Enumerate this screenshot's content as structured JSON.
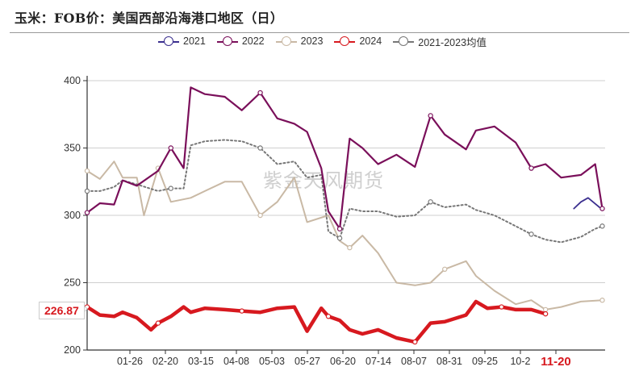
{
  "title": "玉米：FOB价：美国西部沿海港口地区（日）",
  "watermark": "紫金天风期货",
  "legend": [
    {
      "label": "2021",
      "color": "#3b2f8f"
    },
    {
      "label": "2022",
      "color": "#7a0f5a"
    },
    {
      "label": "2023",
      "color": "#c9b9a5"
    },
    {
      "label": "2024",
      "color": "#d7191f"
    },
    {
      "label": "2021-2023均值",
      "color": "#777777"
    }
  ],
  "current_value_badge": "226.87",
  "chart_data": {
    "type": "line",
    "title": "玉米：FOB价：美国西部沿海港口地区（日）",
    "xlabel": "",
    "ylabel": "",
    "ylim": [
      200,
      400
    ],
    "yticks": [
      "400",
      "350",
      "300",
      "250",
      "200"
    ],
    "xticks": [
      "01-26",
      "02-20",
      "03-15",
      "04-08",
      "05-03",
      "05-27",
      "06-20",
      "07-14",
      "08-07",
      "08-31",
      "09-25",
      "10-2",
      "11-20"
    ],
    "highlighted_xtick": "11-20",
    "grid": "horizontal",
    "legend_position": "top",
    "series": [
      {
        "name": "2021",
        "color": "#3b2f8f",
        "x": [
          "12-10",
          "12-15",
          "12-20",
          "12-28"
        ],
        "values": [
          305,
          310,
          313,
          306
        ]
      },
      {
        "name": "2022",
        "color": "#7a0f5a",
        "x": [
          "01-01",
          "01-10",
          "01-20",
          "01-26",
          "02-05",
          "02-20",
          "03-01",
          "03-10",
          "03-15",
          "03-25",
          "04-08",
          "04-20",
          "05-03",
          "05-15",
          "05-27",
          "06-05",
          "06-15",
          "06-20",
          "06-28",
          "07-05",
          "07-14",
          "07-25",
          "08-07",
          "08-20",
          "08-31",
          "09-10",
          "09-25",
          "10-02",
          "10-15",
          "10-30",
          "11-10",
          "11-20",
          "12-01",
          "12-15",
          "12-25",
          "12-30"
        ],
        "values": [
          302,
          309,
          308,
          326,
          322,
          333,
          350,
          335,
          395,
          390,
          388,
          378,
          391,
          372,
          368,
          362,
          335,
          303,
          290,
          357,
          350,
          338,
          345,
          336,
          374,
          360,
          349,
          363,
          366,
          354,
          335,
          338,
          328,
          330,
          338,
          305
        ]
      },
      {
        "name": "2023",
        "color": "#c9b9a5",
        "x": [
          "01-01",
          "01-10",
          "01-20",
          "01-26",
          "02-05",
          "02-10",
          "02-20",
          "03-01",
          "03-15",
          "03-25",
          "04-08",
          "04-20",
          "05-03",
          "05-15",
          "05-27",
          "06-05",
          "06-20",
          "06-28",
          "07-05",
          "07-14",
          "07-25",
          "08-07",
          "08-20",
          "08-31",
          "09-10",
          "09-25",
          "10-02",
          "10-15",
          "10-30",
          "11-10",
          "11-20",
          "12-01",
          "12-15",
          "12-30"
        ],
        "values": [
          333,
          327,
          340,
          328,
          328,
          300,
          335,
          310,
          313,
          318,
          325,
          325,
          300,
          310,
          328,
          295,
          300,
          281,
          276,
          285,
          272,
          250,
          248,
          250,
          260,
          266,
          255,
          244,
          234,
          237,
          230,
          232,
          236,
          237
        ]
      },
      {
        "name": "2024",
        "color": "#d7191f",
        "x": [
          "01-01",
          "01-10",
          "01-20",
          "01-26",
          "02-05",
          "02-15",
          "02-20",
          "03-01",
          "03-10",
          "03-15",
          "03-25",
          "04-08",
          "04-20",
          "05-03",
          "05-15",
          "05-27",
          "06-05",
          "06-15",
          "06-20",
          "06-28",
          "07-05",
          "07-14",
          "07-25",
          "08-07",
          "08-20",
          "08-31",
          "09-10",
          "09-25",
          "10-02",
          "10-10",
          "10-20",
          "10-30",
          "11-10",
          "11-20"
        ],
        "values": [
          232,
          226,
          225,
          228,
          224,
          215,
          220,
          225,
          232,
          228,
          231,
          230,
          229,
          228,
          231,
          232,
          214,
          231,
          225,
          222,
          215,
          212,
          215,
          209,
          206,
          220,
          221,
          226,
          236,
          231,
          232,
          230,
          230,
          226.87
        ]
      },
      {
        "name": "2021-2023均值",
        "color": "#777777",
        "x": [
          "01-01",
          "01-10",
          "01-20",
          "01-26",
          "02-05",
          "02-20",
          "03-01",
          "03-10",
          "03-15",
          "03-25",
          "04-08",
          "04-20",
          "05-03",
          "05-15",
          "05-27",
          "06-05",
          "06-15",
          "06-20",
          "06-28",
          "07-05",
          "07-14",
          "07-25",
          "08-07",
          "08-20",
          "08-31",
          "09-10",
          "09-25",
          "10-02",
          "10-15",
          "10-30",
          "11-10",
          "11-20",
          "12-01",
          "12-15",
          "12-25",
          "12-30"
        ],
        "values": [
          318,
          318,
          321,
          326,
          323,
          318,
          320,
          320,
          352,
          355,
          356,
          355,
          350,
          338,
          340,
          328,
          330,
          288,
          283,
          305,
          303,
          303,
          299,
          300,
          310,
          306,
          308,
          304,
          300,
          292,
          286,
          282,
          280,
          284,
          290,
          292
        ]
      }
    ]
  }
}
